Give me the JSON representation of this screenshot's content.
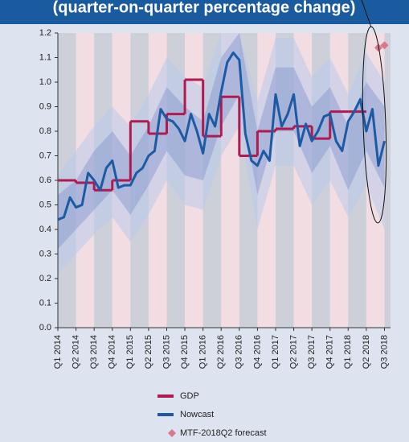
{
  "chart_data": {
    "type": "line",
    "title": "(quarter-on-quarter percentage change)",
    "xlim": [
      0,
      55
    ],
    "xticks": [
      {
        "value": 0,
        "label": "Q1 2014"
      },
      {
        "value": 3,
        "label": "Q2 2014"
      },
      {
        "value": 6,
        "label": "Q3 2014"
      },
      {
        "value": 9,
        "label": "Q4 2014"
      },
      {
        "value": 12,
        "label": "Q1 2015"
      },
      {
        "value": 15,
        "label": "Q2 2015"
      },
      {
        "value": 18,
        "label": "Q3 2015"
      },
      {
        "value": 21,
        "label": "Q4 2015"
      },
      {
        "value": 24,
        "label": "Q1 2016"
      },
      {
        "value": 27,
        "label": "Q2 2016"
      },
      {
        "value": 30,
        "label": "Q3 2016"
      },
      {
        "value": 33,
        "label": "Q4 2016"
      },
      {
        "value": 36,
        "label": "Q1 2017"
      },
      {
        "value": 39,
        "label": "Q2 2017"
      },
      {
        "value": 42,
        "label": "Q3 2017"
      },
      {
        "value": 45,
        "label": "Q4 2017"
      },
      {
        "value": 48,
        "label": "Q1 2018"
      },
      {
        "value": 51,
        "label": "Q2 2018"
      },
      {
        "value": 54,
        "label": "Q3 2018"
      }
    ],
    "ylim": [
      0,
      1.2
    ],
    "yticks": [
      {
        "value": 0,
        "label": "0.0"
      },
      0.1,
      0.2,
      0.3,
      0.4,
      0.5,
      0.6,
      0.7,
      0.8,
      0.9,
      {
        "value": 1,
        "label": "1.0"
      },
      1.1,
      1.2
    ],
    "bands": [
      {
        "color": "#b9c9ea",
        "x": [
          0,
          3,
          6,
          9,
          12,
          15,
          18,
          21,
          24,
          27,
          30,
          33,
          36,
          39,
          42,
          45,
          48,
          51,
          54
        ],
        "lower": [
          0.22,
          0.3,
          0.38,
          0.45,
          0.35,
          0.46,
          0.6,
          0.5,
          0.48,
          0.7,
          0.82,
          0.4,
          0.66,
          0.66,
          0.5,
          0.6,
          0.45,
          0.58,
          0.4
        ],
        "upper": [
          0.62,
          0.72,
          0.82,
          0.9,
          0.82,
          0.95,
          1.1,
          1.02,
          0.98,
          1.2,
          1.2,
          0.92,
          1.18,
          1.18,
          1.02,
          1.1,
          0.95,
          1.12,
          1.0
        ]
      },
      {
        "color": "#8f9fd2",
        "x": [
          0,
          3,
          6,
          9,
          12,
          15,
          18,
          21,
          24,
          27,
          30,
          33,
          36,
          39,
          42,
          45,
          48,
          51,
          54
        ],
        "lower": [
          0.32,
          0.4,
          0.48,
          0.56,
          0.46,
          0.58,
          0.72,
          0.62,
          0.6,
          0.82,
          0.95,
          0.54,
          0.8,
          0.8,
          0.63,
          0.74,
          0.56,
          0.72,
          0.57
        ],
        "upper": [
          0.54,
          0.6,
          0.72,
          0.8,
          0.7,
          0.82,
          0.98,
          0.9,
          0.84,
          1.1,
          1.2,
          0.8,
          1.06,
          1.06,
          0.9,
          0.98,
          0.82,
          1.0,
          0.9
        ]
      }
    ],
    "series": [
      {
        "name": "GDP",
        "type": "step",
        "color": "#b01a4f",
        "x": [
          0,
          3,
          6,
          9,
          12,
          15,
          18,
          21,
          24,
          27,
          30,
          33,
          36,
          39,
          42,
          45,
          48
        ],
        "values": [
          0.6,
          0.59,
          0.56,
          0.6,
          0.84,
          0.79,
          0.87,
          1.01,
          0.78,
          0.94,
          0.7,
          0.8,
          0.81,
          0.82,
          0.77,
          0.88,
          0.88
        ]
      },
      {
        "name": "Nowcast",
        "type": "line",
        "color": "#1c5aa3",
        "x": [
          0,
          1,
          2,
          3,
          4,
          5,
          6,
          7,
          8,
          9,
          10,
          11,
          12,
          13,
          14,
          15,
          16,
          17,
          18,
          19,
          20,
          21,
          22,
          23,
          24,
          25,
          26,
          27,
          28,
          29,
          30,
          31,
          32,
          33,
          34,
          35,
          36,
          37,
          38,
          39,
          40,
          41,
          42,
          43,
          44,
          45,
          46,
          47,
          48,
          49,
          50,
          51,
          52,
          53,
          54
        ],
        "values": [
          0.44,
          0.45,
          0.53,
          0.49,
          0.5,
          0.63,
          0.6,
          0.56,
          0.65,
          0.68,
          0.57,
          0.58,
          0.58,
          0.63,
          0.65,
          0.7,
          0.72,
          0.89,
          0.85,
          0.84,
          0.81,
          0.76,
          0.87,
          0.8,
          0.71,
          0.87,
          0.82,
          0.96,
          1.08,
          1.12,
          1.09,
          0.79,
          0.68,
          0.66,
          0.72,
          0.68,
          0.95,
          0.82,
          0.87,
          0.95,
          0.74,
          0.83,
          0.76,
          0.8,
          0.86,
          0.87,
          0.76,
          0.72,
          0.84,
          0.88,
          0.93,
          0.8,
          0.89,
          0.66,
          0.76
        ]
      },
      {
        "name": "MTF-2018Q2 forecast",
        "type": "points",
        "color": "#d9768a",
        "x": [
          53,
          54
        ],
        "values": [
          1.14,
          1.15
        ]
      }
    ]
  }
}
